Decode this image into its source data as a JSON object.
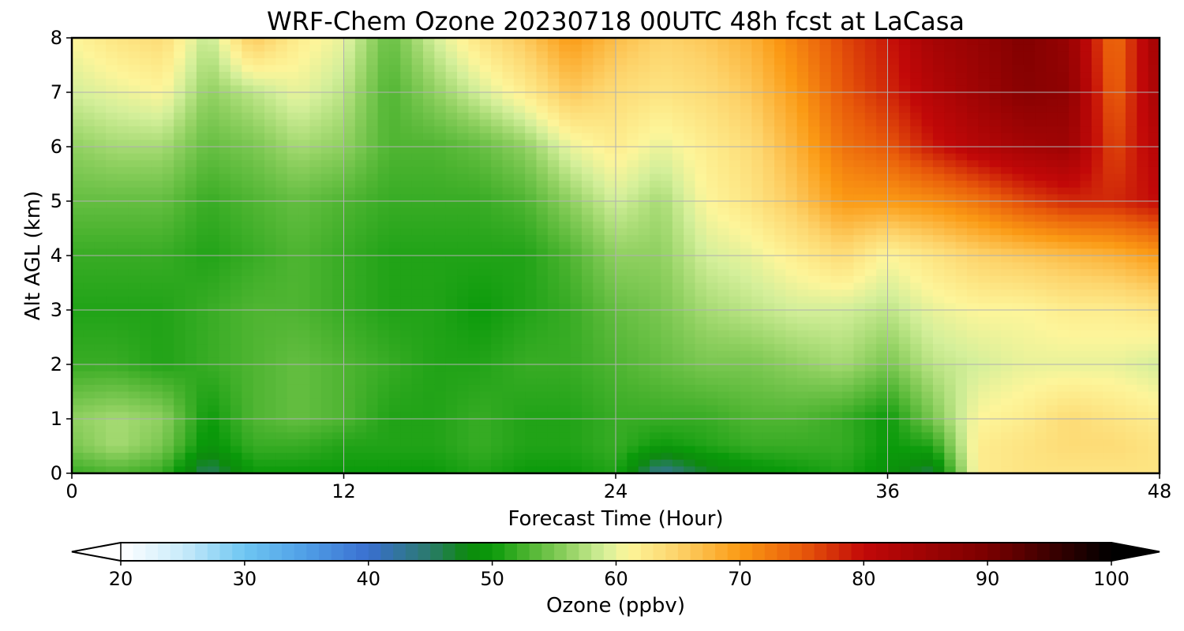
{
  "chart_data": {
    "type": "heatmap",
    "title": "WRF-Chem Ozone  20230718 00UTC 48h fcst at LaCasa",
    "xlabel": "Forecast Time (Hour)",
    "ylabel": "Alt AGL (km)",
    "xlim": [
      0,
      48
    ],
    "ylim": [
      0,
      8
    ],
    "xticks": [
      0,
      12,
      24,
      36,
      48
    ],
    "yticks": [
      0,
      1,
      2,
      3,
      4,
      5,
      6,
      7,
      8
    ],
    "grid": true,
    "colorbar": {
      "label": "Ozone  (ppbv)",
      "min": 20,
      "max": 100,
      "ticks": [
        20,
        30,
        40,
        50,
        60,
        70,
        80,
        90,
        100
      ],
      "extend": "both",
      "stops": [
        {
          "v": 20,
          "c": "#ffffff"
        },
        {
          "v": 25,
          "c": "#c9ebfa"
        },
        {
          "v": 30,
          "c": "#6ec6f2"
        },
        {
          "v": 35,
          "c": "#4f9ee6"
        },
        {
          "v": 40,
          "c": "#3a6fd0"
        },
        {
          "v": 45,
          "c": "#2a7a6a"
        },
        {
          "v": 48,
          "c": "#0d8a0d"
        },
        {
          "v": 50,
          "c": "#0a9a0a"
        },
        {
          "v": 53,
          "c": "#4fb532"
        },
        {
          "v": 56,
          "c": "#8fd060"
        },
        {
          "v": 59,
          "c": "#d4ef9a"
        },
        {
          "v": 61,
          "c": "#fdf59a"
        },
        {
          "v": 65,
          "c": "#fdd36a"
        },
        {
          "v": 70,
          "c": "#fb9a14"
        },
        {
          "v": 75,
          "c": "#e85a0a"
        },
        {
          "v": 80,
          "c": "#c20808"
        },
        {
          "v": 90,
          "c": "#7a0000"
        },
        {
          "v": 100,
          "c": "#000000"
        }
      ]
    },
    "x": [
      0,
      2,
      4,
      6,
      8,
      10,
      12,
      14,
      16,
      18,
      20,
      22,
      24,
      26,
      28,
      30,
      32,
      34,
      36,
      38,
      40,
      42,
      44,
      46,
      48
    ],
    "y": [
      0,
      0.5,
      1,
      2,
      3,
      4,
      5,
      6,
      7,
      8
    ],
    "z": [
      [
        52,
        53,
        52,
        45,
        50,
        50,
        50,
        50,
        50,
        51,
        50,
        50,
        51,
        43,
        47,
        49,
        50,
        51,
        49,
        46,
        62,
        63,
        63,
        63,
        63
      ],
      [
        55,
        57,
        55,
        49,
        52,
        52,
        51,
        51,
        51,
        52,
        51,
        51,
        52,
        50,
        51,
        52,
        52,
        52,
        50,
        51,
        62,
        63,
        64,
        64,
        63
      ],
      [
        56,
        57,
        56,
        50,
        53,
        54,
        53,
        51,
        51,
        52,
        51,
        51,
        52,
        52,
        52,
        53,
        53,
        52,
        50,
        55,
        61,
        62,
        64,
        63,
        62
      ],
      [
        52,
        52,
        51,
        52,
        53,
        54,
        53,
        52,
        51,
        51,
        52,
        52,
        53,
        54,
        55,
        55,
        56,
        57,
        55,
        58,
        59,
        60,
        60,
        60,
        59
      ],
      [
        51,
        51,
        51,
        52,
        53,
        53,
        52,
        51,
        51,
        50,
        51,
        52,
        54,
        55,
        57,
        58,
        59,
        59,
        58,
        60,
        61,
        61,
        62,
        62,
        63
      ],
      [
        52,
        52,
        52,
        51,
        52,
        53,
        52,
        51,
        51,
        51,
        51,
        53,
        56,
        56,
        59,
        60,
        62,
        64,
        61,
        63,
        65,
        66,
        67,
        68,
        70
      ],
      [
        54,
        54,
        54,
        52,
        53,
        54,
        53,
        52,
        52,
        52,
        53,
        56,
        59,
        57,
        61,
        63,
        66,
        70,
        70,
        71,
        73,
        76,
        78,
        78,
        80
      ],
      [
        56,
        57,
        57,
        54,
        55,
        57,
        56,
        53,
        53,
        54,
        56,
        60,
        62,
        60,
        62,
        64,
        68,
        73,
        75,
        79,
        82,
        84,
        85,
        76,
        82
      ],
      [
        59,
        60,
        61,
        56,
        58,
        60,
        58,
        53,
        56,
        59,
        62,
        66,
        64,
        63,
        64,
        66,
        70,
        75,
        78,
        82,
        85,
        88,
        87,
        74,
        84
      ],
      [
        61,
        63,
        64,
        58,
        66,
        62,
        60,
        54,
        59,
        63,
        66,
        70,
        67,
        65,
        66,
        68,
        72,
        76,
        79,
        84,
        86,
        89,
        86,
        73,
        85
      ]
    ]
  }
}
